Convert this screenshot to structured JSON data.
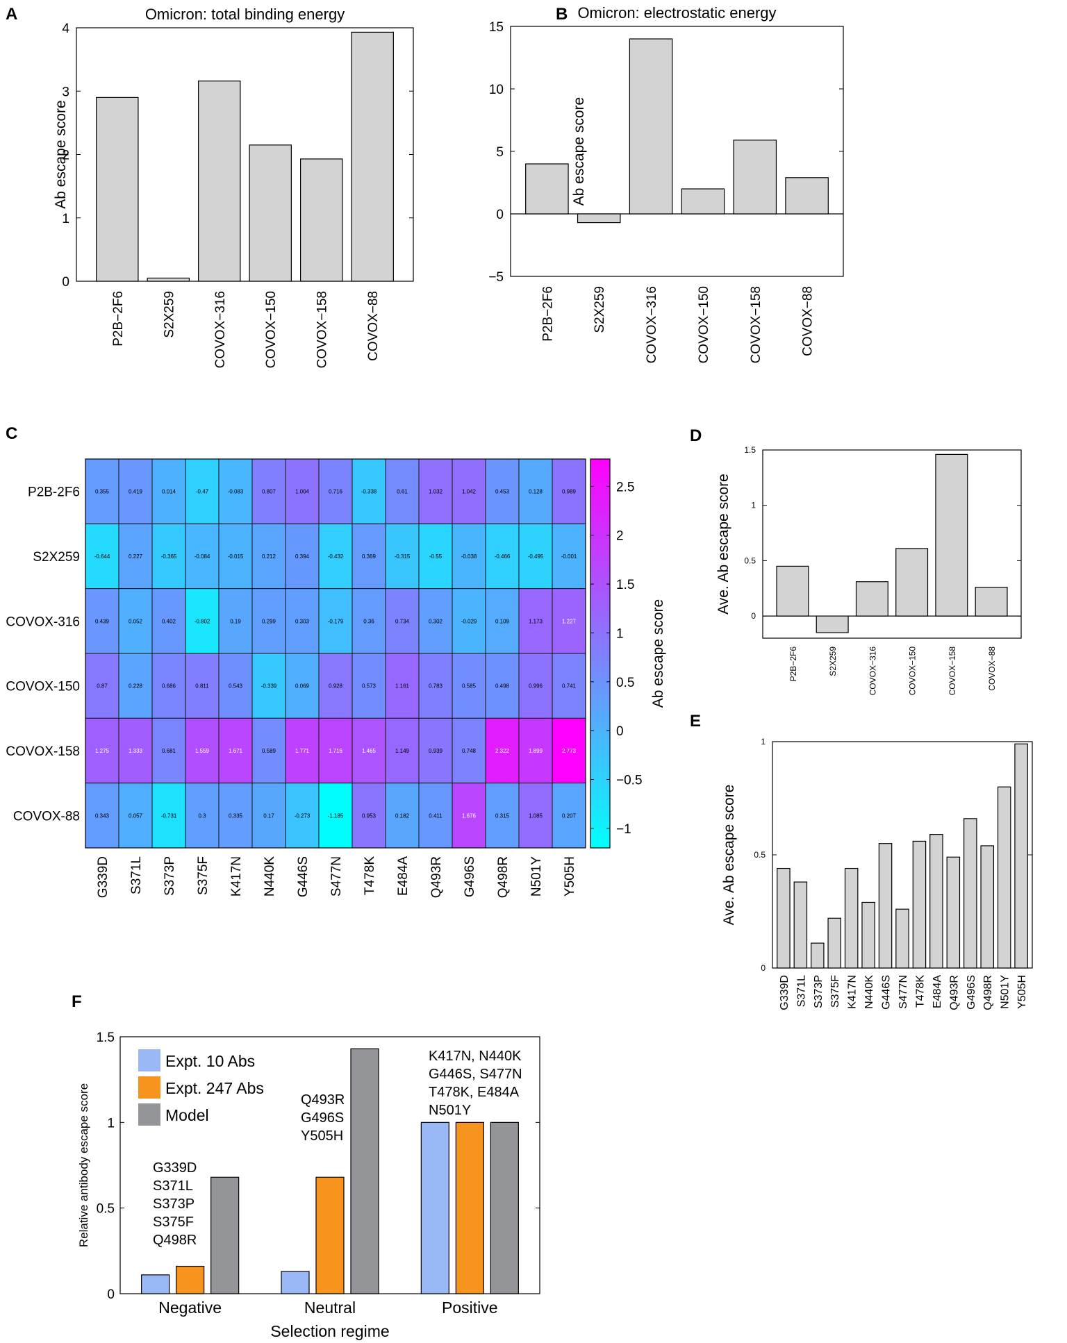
{
  "panels": {
    "A": {
      "label": "A"
    },
    "B": {
      "label": "B"
    },
    "C": {
      "label": "C"
    },
    "D": {
      "label": "D"
    },
    "E": {
      "label": "E"
    },
    "F": {
      "label": "F"
    }
  },
  "chart_data": [
    {
      "id": "A",
      "type": "bar",
      "title": "Omicron: total binding energy",
      "ylabel": "Ab escape score",
      "xlabel": "",
      "categories": [
        "P2B−2F6",
        "S2X259",
        "COVOX−316",
        "COVOX−150",
        "COVOX−158",
        "COVOX−88"
      ],
      "values": [
        2.9,
        0.05,
        3.16,
        2.15,
        1.93,
        3.93
      ],
      "ylim": [
        0,
        4
      ],
      "yticks": [
        "0",
        "1",
        "2",
        "3",
        "4"
      ],
      "ytick_values": [
        0,
        1,
        2,
        3,
        4
      ],
      "bar_color": "#d3d3d3"
    },
    {
      "id": "B",
      "type": "bar",
      "title": "Omicron: electrostatic energy",
      "ylabel": "Ab escape score",
      "xlabel": "",
      "categories": [
        "P2B−2F6",
        "S2X259",
        "COVOX−316",
        "COVOX−150",
        "COVOX−158",
        "COVOX−88"
      ],
      "values": [
        4.0,
        -0.7,
        14.0,
        2.0,
        5.9,
        2.9
      ],
      "ylim": [
        -5,
        15
      ],
      "yticks": [
        "−5",
        "0",
        "5",
        "10",
        "15"
      ],
      "ytick_values": [
        -5,
        0,
        5,
        10,
        15
      ],
      "bar_color": "#d3d3d3"
    },
    {
      "id": "C",
      "type": "heatmap",
      "rows": [
        "P2B-2F6",
        "S2X259",
        "COVOX-316",
        "COVOX-150",
        "COVOX-158",
        "COVOX-88"
      ],
      "columns": [
        "G339D",
        "S371L",
        "S373P",
        "S375F",
        "K417N",
        "N440K",
        "G446S",
        "S477N",
        "T478K",
        "E484A",
        "Q493R",
        "G496S",
        "Q498R",
        "N501Y",
        "Y505H"
      ],
      "values": [
        [
          0.355,
          0.419,
          0.014,
          -0.47,
          -0.083,
          0.807,
          1.004,
          0.716,
          -0.338,
          0.61,
          1.032,
          1.042,
          0.453,
          0.128,
          0.989
        ],
        [
          -0.644,
          0.227,
          -0.365,
          -0.084,
          -0.015,
          0.212,
          0.394,
          -0.432,
          0.369,
          -0.315,
          -0.55,
          -0.038,
          -0.466,
          -0.495,
          -0.001
        ],
        [
          0.439,
          0.052,
          0.402,
          -0.802,
          0.19,
          0.299,
          0.303,
          -0.179,
          0.36,
          0.734,
          0.302,
          -0.029,
          0.109,
          1.173,
          1.227
        ],
        [
          0.87,
          0.228,
          0.686,
          0.811,
          0.543,
          -0.339,
          0.069,
          0.928,
          0.573,
          1.161,
          0.783,
          0.585,
          0.498,
          0.996,
          0.741
        ],
        [
          1.275,
          1.333,
          0.681,
          1.559,
          1.671,
          0.589,
          1.771,
          1.716,
          1.465,
          1.149,
          0.939,
          0.748,
          2.322,
          1.899,
          2.773
        ],
        [
          0.343,
          0.057,
          -0.731,
          0.3,
          0.335,
          0.17,
          -0.273,
          -1.185,
          0.953,
          0.182,
          0.411,
          1.676,
          0.315,
          1.085,
          0.207
        ]
      ],
      "value_labels": [
        [
          "0.355",
          "0.419",
          "0.014",
          "-0.47",
          "-0.083",
          "0.807",
          "1.004",
          "0.716",
          "-0.338",
          "0.61",
          "1.032",
          "1.042",
          "0.453",
          "0.128",
          "0.989"
        ],
        [
          "-0.644",
          "0.227",
          "-0.365",
          "-0.084",
          "-0.015",
          "0.212",
          "0.394",
          "-0.432",
          "0.369",
          "-0.315",
          "-0.55",
          "-0.038",
          "-0.466",
          "-0.495",
          "-0.001"
        ],
        [
          "0.439",
          "0.052",
          "0.402",
          "-0.802",
          "0.19",
          "0.299",
          "0.303",
          "-0.179",
          "0.36",
          "0.734",
          "0.302",
          "-0.029",
          "0.109",
          "1.173",
          "1.227"
        ],
        [
          "0.87",
          "0.228",
          "0.686",
          "0.811",
          "0.543",
          "-0.339",
          "0.069",
          "0.928",
          "0.573",
          "1.161",
          "0.783",
          "0.585",
          "0.498",
          "0.996",
          "0.741"
        ],
        [
          "1.275",
          "1.333",
          "0.681",
          "1.559",
          "1.671",
          "0.589",
          "1.771",
          "1.716",
          "1.465",
          "1.149",
          "0.939",
          "0.748",
          "2.322",
          "1.899",
          "2.773"
        ],
        [
          "0.343",
          "0.057",
          "-0.731",
          "0.3",
          "0.335",
          "0.17",
          "-0.273",
          "-1.185",
          "0.953",
          "0.182",
          "0.411",
          "1.676",
          "0.315",
          "1.085",
          "0.207"
        ]
      ],
      "colorbar": {
        "label": "Ab escape score",
        "range": [
          -1.2,
          2.78
        ],
        "ticks": [
          "−1",
          "−0.5",
          "0",
          "0.5",
          "1",
          "1.5",
          "2",
          "2.5"
        ],
        "tick_values": [
          -1,
          -0.5,
          0,
          0.5,
          1,
          1.5,
          2,
          2.5
        ],
        "colormap": "cool",
        "color_low": "#00ffff",
        "color_high": "#ff00ff"
      }
    },
    {
      "id": "D",
      "type": "bar",
      "ylabel": "Ave. Ab escape score",
      "xlabel": "",
      "categories": [
        "P2B−2F6",
        "S2X259",
        "COVOX−316",
        "COVOX−150",
        "COVOX−158",
        "COVOX−88"
      ],
      "values": [
        0.45,
        -0.15,
        0.31,
        0.61,
        1.46,
        0.26
      ],
      "ylim": [
        -0.2,
        1.5
      ],
      "yticks": [
        "0",
        "0.5",
        "1",
        "1.5"
      ],
      "ytick_values": [
        0,
        0.5,
        1,
        1.5
      ],
      "bar_color": "#d3d3d3"
    },
    {
      "id": "E",
      "type": "bar",
      "ylabel": "Ave. Ab escape score",
      "xlabel": "",
      "categories": [
        "G339D",
        "S371L",
        "S373P",
        "S375F",
        "K417N",
        "N440K",
        "G446S",
        "S477N",
        "T478K",
        "E484A",
        "Q493R",
        "G496S",
        "Q498R",
        "N501Y",
        "Y505H"
      ],
      "values": [
        0.44,
        0.38,
        0.11,
        0.22,
        0.44,
        0.29,
        0.55,
        0.26,
        0.56,
        0.59,
        0.49,
        0.66,
        0.54,
        0.8,
        0.99
      ],
      "ylim": [
        0,
        1
      ],
      "yticks": [
        "0",
        "0.5",
        "1"
      ],
      "ytick_values": [
        0,
        0.5,
        1
      ],
      "bar_color": "#d3d3d3"
    },
    {
      "id": "F",
      "type": "bar",
      "xlabel": "Selection regime",
      "ylabel": "Relative antibody escape score",
      "categories": [
        "Negative",
        "Neutral",
        "Positive"
      ],
      "series": [
        {
          "name": "Expt. 10 Abs",
          "color": "#99b8f5",
          "values": [
            0.11,
            0.13,
            1.0
          ]
        },
        {
          "name": "Expt. 247 Abs",
          "color": "#f7941d",
          "values": [
            0.16,
            0.68,
            1.0
          ]
        },
        {
          "name": "Model",
          "color": "#939598",
          "values": [
            0.68,
            1.43,
            1.0
          ]
        }
      ],
      "ylim": [
        0,
        1.5
      ],
      "yticks": [
        "0",
        "0.5",
        "1",
        "1.5"
      ],
      "ytick_values": [
        0,
        0.5,
        1,
        1.5
      ],
      "annotations": [
        {
          "category": "Negative",
          "lines": [
            "G339D",
            "S371L",
            "S373P",
            "S375F",
            "Q498R"
          ]
        },
        {
          "category": "Neutral",
          "lines": [
            "Q493R",
            "G496S",
            "Y505H"
          ]
        },
        {
          "category": "Positive",
          "lines": [
            "K417N, N440K",
            "G446S, S477N",
            "T478K, E484A",
            "N501Y"
          ]
        }
      ]
    }
  ]
}
